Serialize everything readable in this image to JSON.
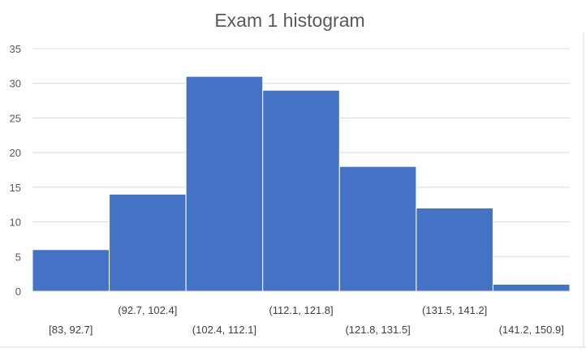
{
  "chart_data": {
    "type": "bar",
    "title": "Exam 1 histogram",
    "xlabel": "",
    "ylabel": "",
    "categories": [
      "[83, 92.7]",
      "(92.7, 102.4]",
      "(102.4, 112.1]",
      "(112.1, 121.8]",
      "(121.8, 131.5]",
      "(131.5, 141.2]",
      "(141.2, 150.9]"
    ],
    "values": [
      6,
      14,
      31,
      29,
      18,
      12,
      1
    ],
    "ylim": [
      0,
      35
    ],
    "yticks": [
      "0",
      "5",
      "10",
      "15",
      "20",
      "25",
      "30",
      "35"
    ],
    "grid": true,
    "legend": "none",
    "bar_color": "#4472C4",
    "grid_color": "#D9D9D9"
  }
}
